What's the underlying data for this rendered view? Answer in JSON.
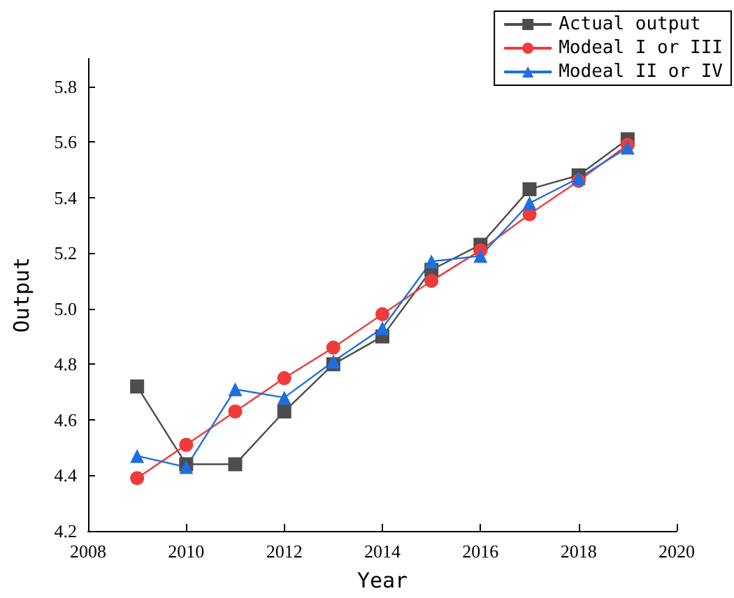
{
  "chart_data": {
    "type": "line",
    "xlabel": "Year",
    "ylabel": "Output",
    "x": [
      2009,
      2010,
      2011,
      2012,
      2013,
      2014,
      2015,
      2016,
      2017,
      2018,
      2019
    ],
    "series": [
      {
        "name": "Actual output",
        "color": "#4d4d4d",
        "marker": "square",
        "values": [
          4.72,
          4.44,
          4.44,
          4.63,
          4.8,
          4.9,
          5.14,
          5.23,
          5.43,
          5.48,
          5.61
        ]
      },
      {
        "name": "Modeal I or III",
        "color": "#ef3b3b",
        "marker": "circle",
        "values": [
          4.39,
          4.51,
          4.63,
          4.75,
          4.86,
          4.98,
          5.1,
          5.21,
          5.34,
          5.46,
          5.59
        ]
      },
      {
        "name": "Modeal II or IV",
        "color": "#1f6fe0",
        "marker": "triangle",
        "values": [
          4.47,
          4.43,
          4.71,
          4.68,
          4.81,
          4.93,
          5.17,
          5.19,
          5.38,
          5.47,
          5.58
        ]
      }
    ],
    "xlim": [
      2008,
      2020
    ],
    "xticks": [
      2008,
      2010,
      2012,
      2014,
      2016,
      2018,
      2020
    ],
    "ylim": [
      4.2,
      5.9
    ],
    "yticks": [
      4.2,
      4.4,
      4.6,
      4.8,
      {
        "value": 5,
        "label": "5.0"
      },
      5.2,
      5.4,
      5.6,
      5.8
    ],
    "grid": false,
    "legend": "top right"
  }
}
